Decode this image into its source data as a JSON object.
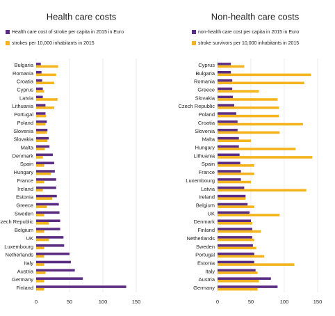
{
  "chart_data": [
    {
      "type": "hbar",
      "title": "Health care costs",
      "categories": [
        "Bulgaria",
        "Romania",
        "Croatia",
        "Cyprus",
        "Latvia",
        "Lithuania",
        "Portugal",
        "Poland",
        "Slovenia",
        "Slovakia",
        "Malta",
        "Denmark",
        "Spain",
        "Hungary",
        "France",
        "Ireland",
        "Estonia",
        "Greece",
        "Sweden",
        "Czech Republic",
        "Belgium",
        "UK",
        "Luxembourg",
        "Netherlands",
        "Italy",
        "Austria",
        "Germany",
        "Finland"
      ],
      "series": [
        {
          "name": "Health care cost of stroke per capita in 2015 in Euro",
          "color": "#5c2e83",
          "values": [
            7,
            8,
            9,
            10,
            10,
            14,
            14,
            16,
            17,
            19,
            20,
            25,
            27,
            28,
            30,
            30,
            31,
            34,
            35,
            36,
            36,
            41,
            42,
            50,
            52,
            58,
            70,
            135
          ]
        },
        {
          "name": "strokes per 10,000 inhabitants in 2015",
          "color": "#f3b41e",
          "values": [
            33,
            30,
            27,
            12,
            32,
            27,
            15,
            14,
            16,
            17,
            13,
            10,
            12,
            22,
            12,
            10,
            24,
            16,
            12,
            19,
            12,
            19,
            12,
            12,
            12,
            14,
            12,
            12
          ]
        }
      ],
      "xlim": [
        0,
        150
      ],
      "xticks": [
        0,
        50,
        100,
        150
      ],
      "grid": true
    },
    {
      "type": "hbar",
      "title": "Non-health care costs",
      "categories": [
        "Cyprus",
        "Bulgaria",
        "Romania",
        "Greece",
        "Slovakia",
        "Czech Republic",
        "Poland",
        "Croatia",
        "Slovenia",
        "Malta",
        "Hungary",
        "Lithuania",
        "Spain",
        "France",
        "Luxembourg",
        "Latvia",
        "Ireland",
        "Belgium",
        "UK",
        "Denmark",
        "Finland",
        "Netherlands",
        "Sweden",
        "Portugal",
        "Estonia",
        "Italy",
        "Austria",
        "Germany"
      ],
      "series": [
        {
          "name": "non-health care cost per capita in 2015 in Euro",
          "color": "#5c2e83",
          "values": [
            20,
            20,
            22,
            22,
            23,
            25,
            28,
            30,
            30,
            32,
            32,
            33,
            34,
            35,
            35,
            40,
            42,
            45,
            48,
            50,
            52,
            52,
            53,
            55,
            55,
            57,
            80,
            90
          ]
        },
        {
          "name": "stroke survivors per 10,000 inhabitants in 2015",
          "color": "#f3b41e",
          "values": [
            40,
            140,
            130,
            62,
            90,
            92,
            92,
            128,
            93,
            50,
            117,
            142,
            55,
            55,
            50,
            133,
            42,
            55,
            93,
            52,
            65,
            55,
            58,
            70,
            115,
            60,
            62,
            60
          ]
        }
      ],
      "xlim": [
        0,
        150
      ],
      "xticks": [
        0,
        50,
        100,
        150
      ],
      "grid": true
    }
  ]
}
